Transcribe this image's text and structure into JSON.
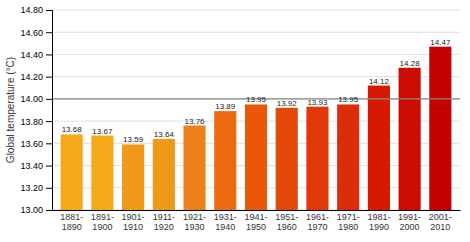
{
  "chart_data": {
    "type": "bar",
    "categories": [
      "1881-\n1890",
      "1891-\n1900",
      "1901-\n1910",
      "1911-\n1920",
      "1921-\n1930",
      "1931-\n1940",
      "1941-\n1950",
      "1951-\n1960",
      "1961-\n1970",
      "1971-\n1980",
      "1981-\n1990",
      "1991-\n2000",
      "2001-\n2010"
    ],
    "values": [
      13.68,
      13.67,
      13.59,
      13.64,
      13.76,
      13.89,
      13.95,
      13.92,
      13.93,
      13.95,
      14.12,
      14.28,
      14.47
    ],
    "colors": [
      "#f5a818",
      "#f5a818",
      "#f09818",
      "#f09818",
      "#ee8018",
      "#eb6c10",
      "#e85808",
      "#e44808",
      "#e03808",
      "#dc2c08",
      "#d81800",
      "#cc0c00",
      "#c40000"
    ],
    "ylabel": "Global temperature (°C)",
    "ylim": [
      13.0,
      14.8
    ],
    "yticks": [
      {
        "value": 13.0,
        "label": "13.00"
      },
      {
        "value": 13.2,
        "label": "13.20"
      },
      {
        "value": 13.4,
        "label": "13.40"
      },
      {
        "value": 13.6,
        "label": "13.60"
      },
      {
        "value": 13.8,
        "label": "13.80"
      },
      {
        "value": 14.0,
        "label": "14.00"
      },
      {
        "value": 14.2,
        "label": "14.20"
      },
      {
        "value": 14.4,
        "label": "14.40"
      },
      {
        "value": 14.6,
        "label": "14.60"
      },
      {
        "value": 14.8,
        "label": "14.80"
      }
    ],
    "reference_line": 14.0,
    "grid": true,
    "data_labels": true
  }
}
